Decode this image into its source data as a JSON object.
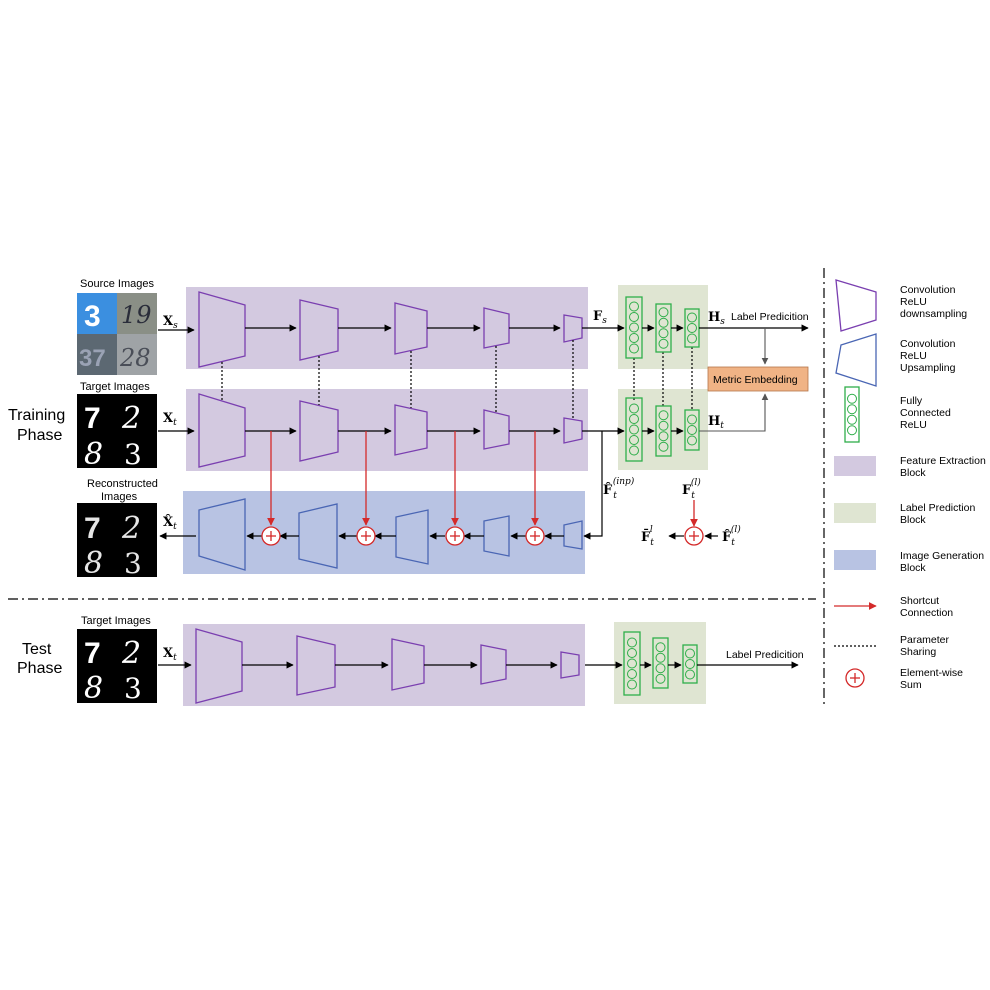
{
  "phases": {
    "training": [
      "Training",
      "Phase"
    ],
    "test": [
      "Test",
      "Phase"
    ]
  },
  "image_labels": {
    "source": "Source Images",
    "target": "Target Images",
    "reconstructed": [
      "Reconstructed",
      "Images"
    ],
    "test_target": "Target Images"
  },
  "symbols": {
    "xs": "X",
    "xs_sub": "s",
    "xt": "X",
    "xt_sub": "t",
    "xt_hat": "X̂",
    "xt_hat_sub": "t",
    "fs": "F",
    "fs_sub": "s",
    "hs": "H",
    "hs_sub": "s",
    "ht": "H",
    "ht_sub": "t",
    "ft_inp": "F̂",
    "ft_inp_sub": "t",
    "ft_inp_sup": "(inp)",
    "ft_l": "F",
    "ft_l_sub": "t",
    "ft_l_sup": "(l)",
    "ft_bar": "F̄",
    "ft_bar_sub": "t",
    "ft_bar_sup": "l",
    "ft_hat_l": "F̂",
    "ft_hat_l_sub": "t",
    "ft_hat_l_sup": "(l)",
    "test_xt": "X",
    "test_xt_sub": "t"
  },
  "labels": {
    "label_prediction_top": "Label Predicition",
    "label_prediction_test": "Label Predicition",
    "metric_embedding": "Metric Embedding"
  },
  "digits": {
    "source": [
      "3",
      "19",
      "37",
      "28"
    ],
    "target": [
      "7",
      "2",
      "8",
      "3"
    ]
  },
  "legend": {
    "conv_down": [
      "Convolution",
      "ReLU",
      "downsampling"
    ],
    "conv_up": [
      "Convolution",
      "ReLU",
      "Upsampling"
    ],
    "fc": [
      "Fully",
      "Connected",
      "ReLU"
    ],
    "feature_block": [
      "Feature Extraction",
      "Block"
    ],
    "label_block": [
      "Label Prediction",
      "Block"
    ],
    "gen_block": [
      "Image Generation",
      "Block"
    ],
    "shortcut": [
      "Shortcut",
      "Connection"
    ],
    "param_share": [
      "Parameter",
      "Sharing"
    ],
    "elem_sum": [
      "Element-wise",
      "Sum"
    ]
  },
  "colors": {
    "feature_block": "#d3c9e0",
    "label_block": "#dfe5d2",
    "gen_block": "#b8c3e3",
    "conv_down_stroke": "#7a3fb0",
    "conv_up_stroke": "#4a66b4",
    "fc_stroke": "#2fae4a",
    "shortcut": "#d42a2a",
    "metric_fill": "#f0b385"
  }
}
